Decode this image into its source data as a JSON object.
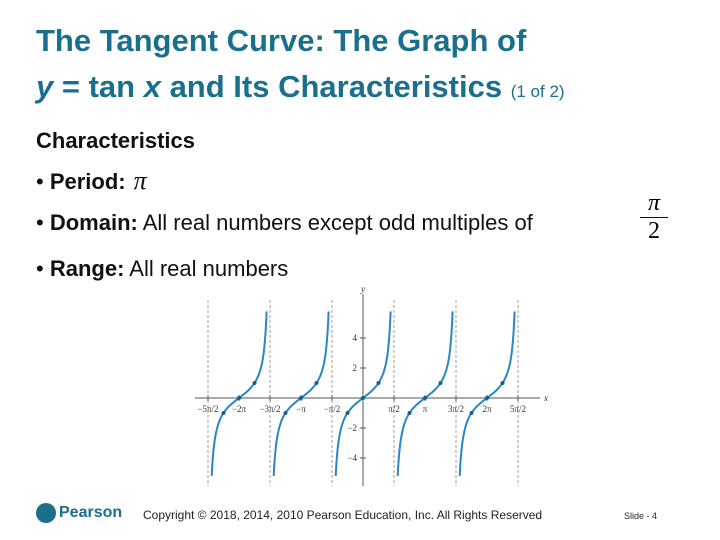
{
  "header": {
    "title_line1": "The Tangent Curve: The Graph of",
    "title_var_y": "y",
    "title_eq": " = tan ",
    "title_var_x": "x",
    "title_rest": " and Its Characteristics ",
    "title_note": "(1 of 2)"
  },
  "section": "Characteristics",
  "bullets": [
    {
      "label": "Period:",
      "text": "π"
    },
    {
      "label": "Domain:",
      "text": "All real numbers except odd multiples of",
      "fraction": {
        "num": "π",
        "den": "2"
      }
    },
    {
      "label": "Range:",
      "text": "All real numbers"
    }
  ],
  "graph": {
    "x_label": "x",
    "y_label": "y",
    "x_ticks": [
      "−5π/2",
      "−2π",
      "−3π/2",
      "−π",
      "−π/2",
      "π/2",
      "π",
      "3π/2",
      "2π",
      "5π/2"
    ],
    "y_ticks": [
      "4",
      "2",
      "−2",
      "−4"
    ]
  },
  "footer": {
    "logo": "Pearson",
    "copyright": "Copyright © 2018, 2014, 2010 Pearson Education, Inc. All Rights Reserved",
    "slide": "Slide - 4"
  }
}
